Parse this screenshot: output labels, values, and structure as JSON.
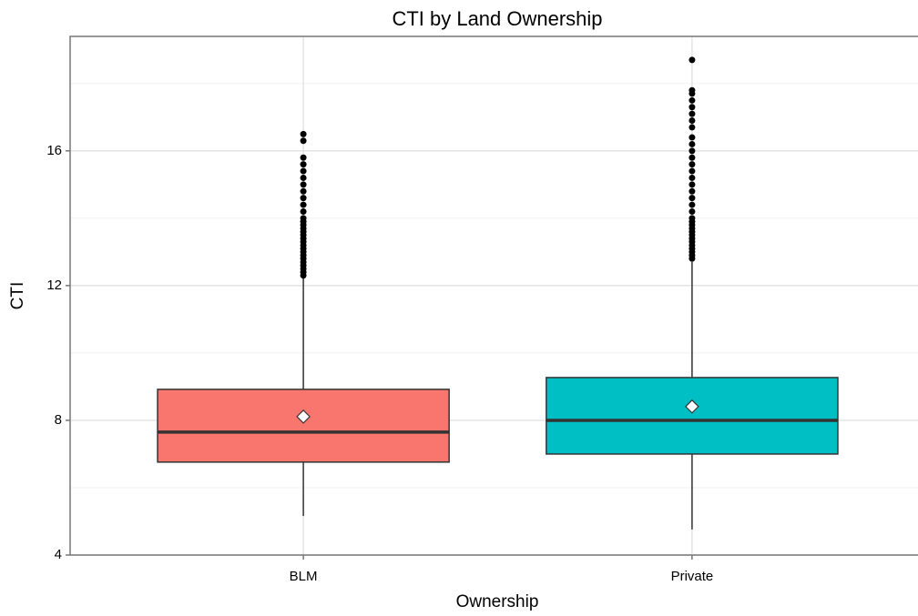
{
  "chart_data": {
    "type": "box",
    "title": "CTI by Land Ownership",
    "x_label": "Ownership",
    "y_label": "CTI",
    "categories": [
      "BLM",
      "Private"
    ],
    "ylim": [
      4,
      19.4
    ],
    "yticks": [
      4,
      8,
      12,
      16
    ],
    "minor_yticks": [
      6,
      10,
      14,
      18
    ],
    "grid": true,
    "boxes": [
      {
        "color": "#F8766D",
        "min": 5.16,
        "q1": 6.76,
        "median": 7.65,
        "q3": 8.92,
        "max": 12.24,
        "mean": 8.11,
        "outliers": [
          12.3,
          12.4,
          12.5,
          12.6,
          12.7,
          12.8,
          12.9,
          13.0,
          13.1,
          13.2,
          13.3,
          13.4,
          13.5,
          13.6,
          13.7,
          13.8,
          13.9,
          14.0,
          14.2,
          14.4,
          14.6,
          14.8,
          15.0,
          15.2,
          15.4,
          15.6,
          15.8,
          16.3,
          16.5
        ]
      },
      {
        "color": "#00BFC4",
        "min": 4.76,
        "q1": 7.0,
        "median": 8.0,
        "q3": 9.27,
        "max": 12.7,
        "mean": 8.41,
        "outliers": [
          12.8,
          12.9,
          13.0,
          13.1,
          13.2,
          13.3,
          13.4,
          13.5,
          13.6,
          13.7,
          13.8,
          13.9,
          14.0,
          14.2,
          14.4,
          14.6,
          14.8,
          15.0,
          15.2,
          15.4,
          15.6,
          15.8,
          16.0,
          16.2,
          16.4,
          16.7,
          16.9,
          17.1,
          17.3,
          17.5,
          17.7,
          17.8,
          18.7
        ]
      }
    ]
  }
}
